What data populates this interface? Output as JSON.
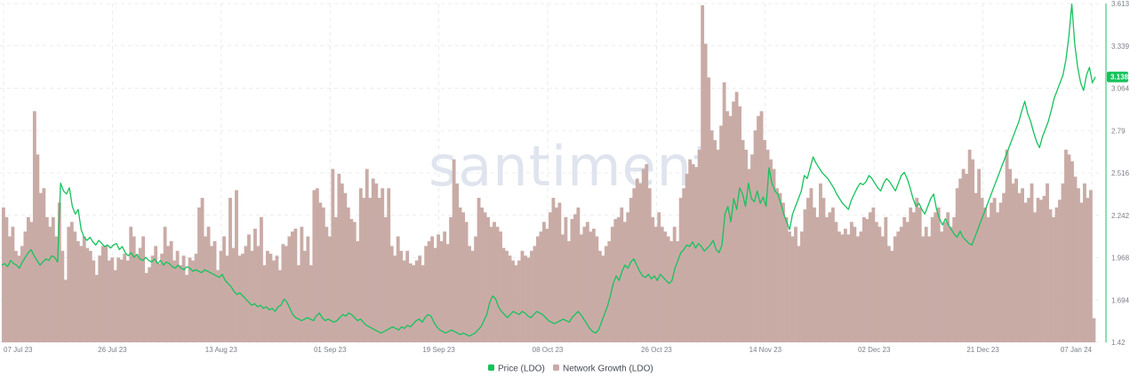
{
  "watermark": "santiment",
  "colors": {
    "price": "#14c35c",
    "network": "#c9aba6",
    "grid": "#e5e7eb",
    "axis_text": "#7a7f87",
    "watermark": "#dfe4ee"
  },
  "chart_data": {
    "type": "bar+line",
    "x_ticks": [
      "07 Jul 23",
      "26 Jul 23",
      "13 Aug 23",
      "01 Sep 23",
      "19 Sep 23",
      "08 Oct 23",
      "26 Oct 23",
      "14 Nov 23",
      "02 Dec 23",
      "21 Dec 23",
      "07 Jan 24"
    ],
    "y_right_ticks": [
      "3.613",
      "3.339",
      "3.064",
      "2.79",
      "2.516",
      "2.242",
      "1.968",
      "1.694",
      "1.42"
    ],
    "y_right_range": [
      1.42,
      3.613
    ],
    "grid": true,
    "legend_position": "bottom-center",
    "last_price_label": "3.138",
    "series": [
      {
        "name": "Price (LDO)",
        "type": "line",
        "axis": "right",
        "color": "#14c35c",
        "values": [
          1.92,
          1.93,
          1.91,
          1.95,
          1.93,
          1.92,
          1.9,
          1.94,
          1.97,
          2.0,
          2.02,
          1.98,
          1.95,
          1.92,
          1.94,
          1.96,
          1.95,
          1.98,
          1.97,
          1.94,
          2.45,
          2.4,
          2.38,
          2.42,
          2.3,
          2.25,
          2.28,
          2.15,
          2.1,
          2.08,
          2.1,
          2.07,
          2.05,
          2.08,
          2.06,
          2.04,
          2.05,
          2.03,
          2.05,
          2.06,
          2.02,
          2.04,
          2.0,
          1.98,
          2.0,
          1.97,
          1.99,
          1.96,
          1.95,
          1.97,
          1.95,
          1.94,
          1.96,
          1.93,
          1.95,
          1.92,
          1.94,
          1.93,
          1.91,
          1.9,
          1.92,
          1.9,
          1.89,
          1.91,
          1.9,
          1.88,
          1.89,
          1.88,
          1.87,
          1.89,
          1.88,
          1.87,
          1.86,
          1.85,
          1.84,
          1.86,
          1.82,
          1.8,
          1.78,
          1.75,
          1.73,
          1.74,
          1.72,
          1.7,
          1.68,
          1.66,
          1.67,
          1.65,
          1.66,
          1.64,
          1.65,
          1.63,
          1.64,
          1.62,
          1.65,
          1.66,
          1.7,
          1.68,
          1.64,
          1.6,
          1.58,
          1.57,
          1.56,
          1.57,
          1.58,
          1.57,
          1.56,
          1.59,
          1.61,
          1.58,
          1.56,
          1.57,
          1.56,
          1.55,
          1.56,
          1.58,
          1.6,
          1.59,
          1.61,
          1.6,
          1.58,
          1.56,
          1.57,
          1.55,
          1.53,
          1.52,
          1.51,
          1.5,
          1.49,
          1.48,
          1.49,
          1.5,
          1.51,
          1.52,
          1.51,
          1.5,
          1.52,
          1.51,
          1.53,
          1.52,
          1.54,
          1.56,
          1.57,
          1.55,
          1.58,
          1.6,
          1.59,
          1.55,
          1.52,
          1.5,
          1.49,
          1.48,
          1.49,
          1.5,
          1.49,
          1.48,
          1.47,
          1.48,
          1.47,
          1.46,
          1.47,
          1.48,
          1.5,
          1.52,
          1.56,
          1.6,
          1.68,
          1.72,
          1.7,
          1.65,
          1.62,
          1.6,
          1.58,
          1.6,
          1.62,
          1.61,
          1.6,
          1.62,
          1.61,
          1.59,
          1.58,
          1.6,
          1.62,
          1.61,
          1.6,
          1.58,
          1.56,
          1.55,
          1.54,
          1.55,
          1.56,
          1.57,
          1.56,
          1.55,
          1.58,
          1.6,
          1.62,
          1.6,
          1.57,
          1.54,
          1.51,
          1.49,
          1.48,
          1.5,
          1.55,
          1.6,
          1.65,
          1.72,
          1.8,
          1.85,
          1.82,
          1.88,
          1.92,
          1.9,
          1.94,
          1.96,
          1.92,
          1.88,
          1.85,
          1.84,
          1.86,
          1.83,
          1.85,
          1.82,
          1.86,
          1.84,
          1.82,
          1.8,
          1.82,
          1.9,
          1.95,
          2.0,
          2.02,
          2.05,
          2.04,
          2.07,
          2.03,
          2.06,
          2.04,
          2.01,
          2.03,
          2.05,
          2.08,
          2.02,
          2.0,
          2.05,
          2.25,
          2.3,
          2.2,
          2.35,
          2.28,
          2.42,
          2.38,
          2.3,
          2.45,
          2.35,
          2.33,
          2.4,
          2.32,
          2.36,
          2.3,
          2.55,
          2.45,
          2.4,
          2.38,
          2.32,
          2.25,
          2.2,
          2.15,
          2.25,
          2.3,
          2.35,
          2.4,
          2.5,
          2.48,
          2.55,
          2.62,
          2.58,
          2.55,
          2.52,
          2.5,
          2.48,
          2.45,
          2.42,
          2.38,
          2.35,
          2.32,
          2.3,
          2.28,
          2.34,
          2.38,
          2.42,
          2.45,
          2.44,
          2.46,
          2.5,
          2.48,
          2.45,
          2.42,
          2.4,
          2.45,
          2.48,
          2.46,
          2.43,
          2.4,
          2.45,
          2.5,
          2.52,
          2.48,
          2.42,
          2.35,
          2.3,
          2.32,
          2.28,
          2.25,
          2.3,
          2.35,
          2.38,
          2.28,
          2.22,
          2.18,
          2.22,
          2.18,
          2.15,
          2.12,
          2.1,
          2.14,
          2.1,
          2.08,
          2.06,
          2.05,
          2.1,
          2.15,
          2.2,
          2.25,
          2.3,
          2.35,
          2.4,
          2.45,
          2.5,
          2.55,
          2.6,
          2.65,
          2.7,
          2.75,
          2.8,
          2.85,
          2.92,
          2.98,
          2.9,
          2.85,
          2.78,
          2.72,
          2.68,
          2.75,
          2.8,
          2.85,
          2.92,
          3.0,
          3.05,
          3.1,
          3.15,
          3.25,
          3.4,
          3.61,
          3.35,
          3.2,
          3.1,
          3.05,
          3.15,
          3.2,
          3.1,
          3.138
        ]
      },
      {
        "name": "Network Growth (LDO)",
        "type": "bar",
        "axis": "left-hidden",
        "color": "#c9aba6",
        "values": [
          140,
          130,
          110,
          120,
          95,
          90,
          100,
          115,
          130,
          125,
          240,
          195,
          155,
          160,
          130,
          120,
          130,
          110,
          145,
          95,
          65,
          120,
          125,
          115,
          105,
          100,
          110,
          98,
          95,
          85,
          70,
          90,
          100,
          100,
          85,
          88,
          75,
          88,
          86,
          92,
          85,
          120,
          110,
          90,
          98,
          110,
          72,
          78,
          90,
          100,
          82,
          92,
          120,
          100,
          105,
          85,
          95,
          80,
          90,
          70,
          88,
          85,
          92,
          140,
          150,
          110,
          120,
          100,
          105,
          75,
          95,
          110,
          90,
          150,
          98,
          158,
          90,
          92,
          100,
          112,
          95,
          118,
          100,
          130,
          80,
          95,
          92,
          85,
          90,
          75,
          102,
          100,
          110,
          115,
          118,
          80,
          120,
          95,
          110,
          80,
          158,
          160,
          145,
          140,
          120,
          110,
          180,
          130,
          175,
          165,
          155,
          140,
          128,
          125,
          105,
          160,
          150,
          180,
          150,
          170,
          165,
          150,
          160,
          130,
          160,
          100,
          90,
          110,
          95,
          85,
          95,
          82,
          80,
          85,
          90,
          80,
          100,
          105,
          110,
          98,
          112,
          105,
          115,
          102,
          130,
          190,
          165,
          140,
          135,
          125,
          100,
          95,
          110,
          150,
          140,
          135,
          130,
          120,
          125,
          120,
          115,
          98,
          95,
          90,
          85,
          80,
          85,
          95,
          90,
          88,
          95,
          100,
          110,
          115,
          125,
          118,
          135,
          150,
          140,
          145,
          112,
          130,
          105,
          128,
          133,
          140,
          112,
          120,
          125,
          115,
          118,
          110,
          95,
          90,
          100,
          105,
          120,
          128,
          130,
          140,
          125,
          135,
          150,
          160,
          170,
          165,
          180,
          185,
          160,
          130,
          120,
          135,
          120,
          115,
          110,
          105,
          120,
          105,
          150,
          160,
          175,
          190,
          185,
          182,
          200,
          350,
          310,
          275,
          220,
          210,
          200,
          225,
          270,
          240,
          235,
          250,
          260,
          245,
          210,
          200,
          180,
          195,
          220,
          235,
          240,
          210,
          200,
          190,
          180,
          160,
          155,
          145,
          130,
          115,
          110,
          120,
          100,
          115,
          138,
          150,
          160,
          140,
          130,
          165,
          150,
          130,
          135,
          140,
          125,
          115,
          112,
          118,
          112,
          125,
          120,
          110,
          115,
          130,
          128,
          135,
          140,
          125,
          120,
          110,
          130,
          100,
          95,
          110,
          115,
          120,
          130,
          125,
          140,
          135,
          150,
          140,
          110,
          120,
          110,
          130,
          135,
          140,
          115,
          125,
          135,
          120,
          130,
          160,
          170,
          180,
          175,
          200,
          190,
          155,
          180,
          150,
          140,
          130,
          145,
          150,
          135,
          145,
          155,
          200,
          180,
          165,
          170,
          155,
          160,
          145,
          150,
          165,
          135,
          150,
          148,
          152,
          165,
          138,
          130,
          140,
          148,
          165,
          200,
          195,
          188,
          172,
          160,
          145,
          165,
          150,
          158,
          25
        ]
      }
    ]
  },
  "legend": [
    {
      "label": "Price (LDO)",
      "color": "#14c35c"
    },
    {
      "label": "Network Growth (LDO)",
      "color": "#c9aba6"
    }
  ]
}
